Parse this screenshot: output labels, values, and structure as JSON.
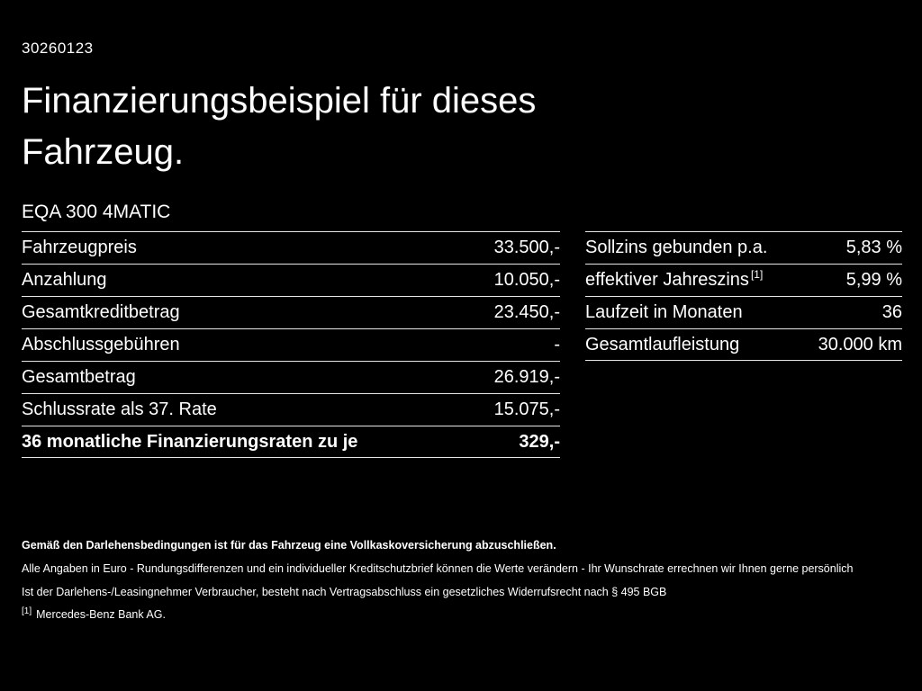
{
  "page": {
    "doc_id": "30260123",
    "title_line1": "Finanzierungsbeispiel für dieses",
    "title_line2": "Fahrzeug.",
    "vehicle_model": "EQA 300 4MATIC"
  },
  "finance_table": {
    "rows": [
      {
        "label": "Fahrzeugpreis",
        "value": "33.500,-"
      },
      {
        "label": "Anzahlung",
        "value": "10.050,-"
      },
      {
        "label": "Gesamtkreditbetrag",
        "value": "23.450,-"
      },
      {
        "label": "Abschlussgebühren",
        "value": "-"
      },
      {
        "label": "Gesamtbetrag",
        "value": "26.919,-"
      },
      {
        "label": "Schlussrate als 37. Rate",
        "value": "15.075,-"
      },
      {
        "label": "36 monatliche Finanzierungsraten zu je",
        "value": "329,-"
      }
    ]
  },
  "conditions_table": {
    "rows": [
      {
        "label": "Sollzins gebunden p.a.",
        "value": "5,83 %"
      },
      {
        "label": "effektiver Jahreszins",
        "label_sup": "[1]",
        "value": "5,99 %"
      },
      {
        "label": "Laufzeit in Monaten",
        "value": "36"
      },
      {
        "label": "Gesamtlaufleistung",
        "value": "30.000 km"
      }
    ]
  },
  "footer": {
    "bold_line": "Gemäß den Darlehensbedingungen ist für das Fahrzeug eine Vollkaskoversicherung abzuschließen.",
    "line2": "Alle Angaben in Euro - Rundungsdifferenzen und ein individueller Kreditschutzbrief können die Werte verändern - Ihr Wunschrate errechnen wir Ihnen gerne persönlich",
    "line3": "Ist der Darlehens-/Leasingnehmer Verbraucher, besteht nach Vertragsabschluss ein gesetzliches Widerrufsrecht nach § 495 BGB",
    "footnote_marker": "[1]",
    "footnote_text": "Mercedes-Benz Bank AG."
  },
  "colors": {
    "background": "#000000",
    "text": "#ffffff",
    "divider": "#e6e6e6"
  }
}
